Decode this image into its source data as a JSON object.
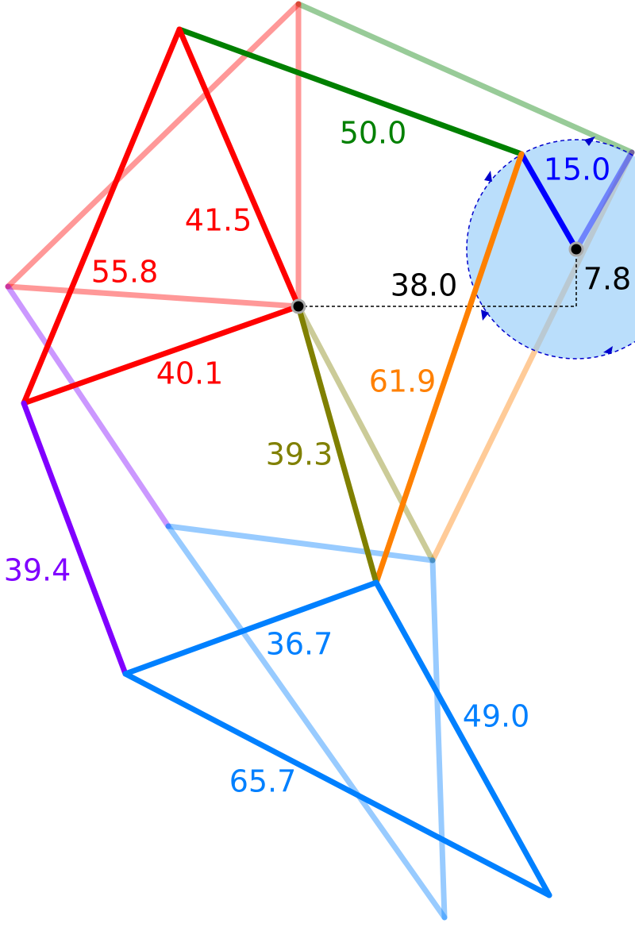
{
  "labels": [
    "50.0",
    "15.0",
    "41.5",
    "55.8",
    "38.0",
    "7.8",
    "40.1",
    "61.9",
    "39.3",
    "39.4",
    "36.7",
    "49.0",
    "65.7"
  ]
}
